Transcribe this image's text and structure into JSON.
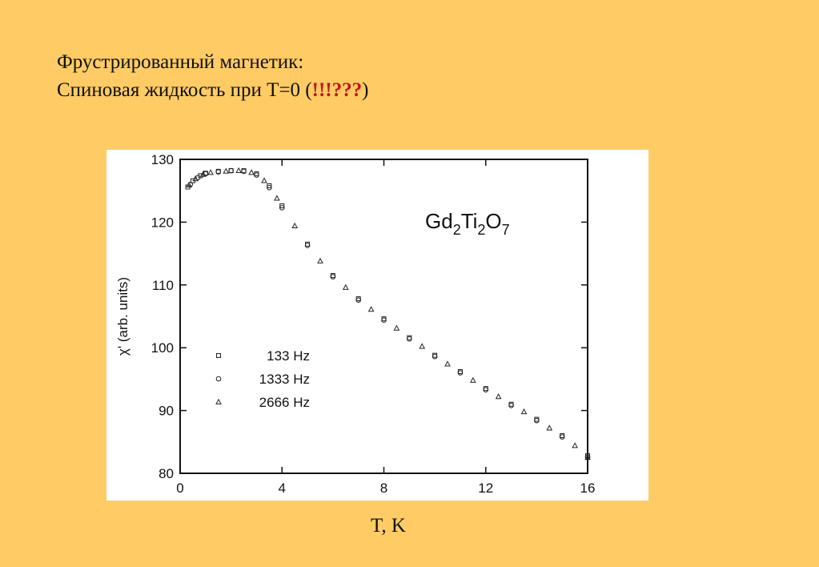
{
  "slide": {
    "title_line1": "Фрустрированный магнетик:",
    "title_line2_prefix": "Спиновая жидкость при T=0 (",
    "title_line2_accent": "!!!???",
    "title_line2_suffix": ")",
    "x_caption": "T, K"
  },
  "colors": {
    "background": "#FECB65",
    "accent": "#C0141A",
    "ink": "#111111"
  },
  "chart_data": {
    "type": "scatter",
    "title": "",
    "annotation": {
      "formula_parts": [
        "Gd",
        "2",
        "Ti",
        "2",
        "O",
        "7"
      ]
    },
    "ylabel": "χ' (arb. units)",
    "xlabel": "",
    "xlim": [
      0,
      16
    ],
    "ylim": [
      80,
      130
    ],
    "xticks": [
      0,
      4,
      8,
      12,
      16
    ],
    "yticks": [
      80,
      90,
      100,
      110,
      120,
      130
    ],
    "grid": false,
    "legend_position": "lower-left",
    "series": [
      {
        "name": "133 Hz",
        "marker": "square",
        "x": [
          0.3,
          0.5,
          0.8,
          1.0,
          1.5,
          2.0,
          2.5,
          3.0,
          3.5,
          4.0,
          5.0,
          6.0,
          7.0,
          8.0,
          9.0,
          10.0,
          11.0,
          12.0,
          13.0,
          14.0,
          15.0,
          16.0
        ],
        "y": [
          125.6,
          126.6,
          127.4,
          127.8,
          128.1,
          128.2,
          128.2,
          127.7,
          125.8,
          122.6,
          116.5,
          111.5,
          107.8,
          104.6,
          101.6,
          98.8,
          96.2,
          93.5,
          91.0,
          88.6,
          86.0,
          82.8
        ]
      },
      {
        "name": "1333 Hz",
        "marker": "circle",
        "x": [
          0.4,
          0.7,
          1.0,
          1.5,
          2.0,
          2.5,
          3.0,
          3.5,
          4.0,
          5.0,
          6.0,
          7.0,
          8.0,
          9.0,
          10.0,
          11.0,
          12.0,
          13.0,
          14.0,
          15.0,
          16.0
        ],
        "y": [
          126.0,
          127.1,
          127.7,
          128.0,
          128.2,
          128.1,
          127.5,
          125.5,
          122.3,
          116.3,
          111.3,
          107.6,
          104.4,
          101.4,
          98.6,
          96.0,
          93.3,
          90.8,
          88.4,
          85.8,
          82.6
        ]
      },
      {
        "name": "2666 Hz",
        "marker": "triangle",
        "x": [
          0.35,
          0.6,
          0.9,
          1.2,
          1.8,
          2.3,
          2.8,
          3.3,
          3.8,
          4.5,
          5.5,
          6.5,
          7.5,
          8.5,
          9.5,
          10.5,
          11.5,
          12.5,
          13.5,
          14.5,
          15.5,
          16.0
        ],
        "y": [
          125.9,
          126.9,
          127.6,
          127.9,
          128.1,
          128.2,
          127.9,
          126.6,
          123.8,
          119.4,
          113.8,
          109.6,
          106.1,
          103.1,
          100.2,
          97.4,
          94.8,
          92.2,
          89.8,
          87.2,
          84.4,
          82.5
        ]
      }
    ]
  }
}
